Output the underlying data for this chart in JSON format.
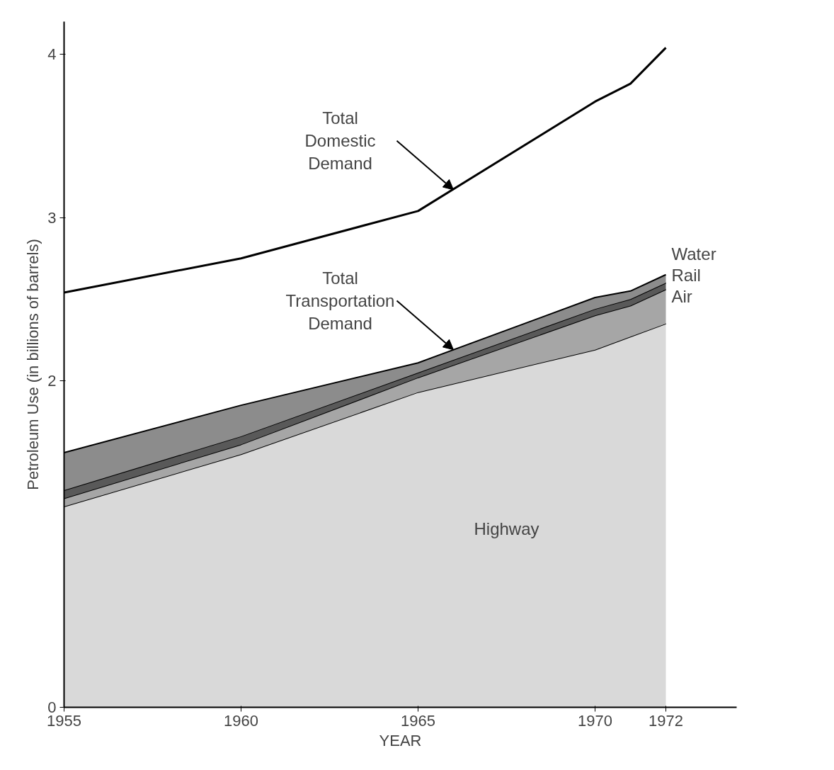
{
  "chart_data": {
    "type": "area",
    "stacked": true,
    "xlabel": "YEAR",
    "ylabel": "Petroleum Use (in billions of barrels)",
    "x": [
      1955,
      1960,
      1965,
      1970,
      1971,
      1972
    ],
    "series": [
      {
        "name": "Highway",
        "color": "#d9d9d9",
        "values": [
          1.23,
          1.55,
          1.93,
          2.19,
          2.27,
          2.35
        ]
      },
      {
        "name": "Air",
        "color": "#a6a6a6",
        "values": [
          0.05,
          0.06,
          0.09,
          0.21,
          0.19,
          0.21
        ]
      },
      {
        "name": "Rail",
        "color": "#595959",
        "values": [
          0.05,
          0.05,
          0.03,
          0.04,
          0.04,
          0.04
        ]
      },
      {
        "name": "Water",
        "color": "#8c8c8c",
        "values": [
          0.23,
          0.19,
          0.06,
          0.07,
          0.05,
          0.05
        ]
      },
      {
        "type": "line",
        "color": "#000000",
        "values": [
          2.54,
          2.75,
          3.04,
          3.71,
          3.82,
          4.04
        ]
      }
    ],
    "annotations": [
      {
        "text": "Total Domestic Demand",
        "x": 1966,
        "y": 3.17
      },
      {
        "text": "Total Transportation Demand",
        "x": 1966,
        "y": 2.19
      }
    ],
    "xlim": [
      1955,
      1974
    ],
    "ylim": [
      0,
      4.2
    ],
    "xticks": [
      1955,
      1960,
      1965,
      1970,
      1972
    ],
    "yticks": [
      0,
      2,
      3,
      4
    ],
    "grid": false
  }
}
